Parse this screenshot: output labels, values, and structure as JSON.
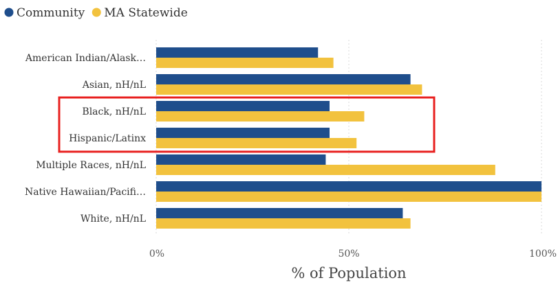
{
  "chart_data": {
    "type": "bar",
    "orientation": "horizontal",
    "categories": [
      "American Indian/Alask…",
      "Asian, nH/nL",
      "Black, nH/nL",
      "Hispanic/Latinx",
      "Multiple Races, nH/nL",
      "Native Hawaiian/Pacifi…",
      "White, nH/nL"
    ],
    "series": [
      {
        "name": "Community",
        "color": "#1f4e8c",
        "values": [
          42,
          66,
          45,
          45,
          44,
          100,
          64
        ]
      },
      {
        "name": "MA Statewide",
        "color": "#f2c23e",
        "values": [
          46,
          69,
          54,
          52,
          88,
          100,
          66
        ]
      }
    ],
    "xlabel": "% of Population",
    "xlim": [
      0,
      100
    ],
    "xticks": [
      {
        "value": 0,
        "label": "0%"
      },
      {
        "value": 50,
        "label": "50%"
      },
      {
        "value": 100,
        "label": "100%"
      }
    ],
    "grid": "vertical dotted",
    "legend_position": "top-left",
    "highlighted_categories": [
      "Black, nH/nL",
      "Hispanic/Latinx"
    ],
    "highlight_color": "#e8201f"
  }
}
